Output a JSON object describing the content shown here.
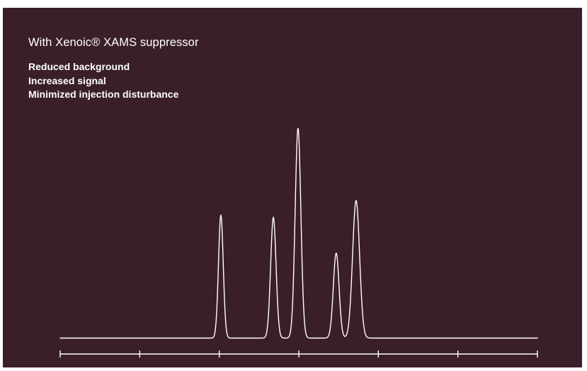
{
  "chart_data": {
    "type": "line",
    "title": "With Xenoic® XAMS suppressor",
    "annotations": [
      "Reduced background",
      "Increased signal",
      "Minimized injection disturbance"
    ],
    "xlabel": "",
    "ylabel": "",
    "xlim": [
      0,
      6
    ],
    "ylim": [
      0,
      1
    ],
    "x_tick_values": [
      0,
      1,
      2,
      3,
      4,
      5,
      6
    ],
    "x_tick_labels_shown": false,
    "grid": false,
    "legend": "none",
    "baseline": 0.005,
    "peaks": [
      {
        "x": 2.02,
        "height": 0.585,
        "width": 0.03
      },
      {
        "x": 2.68,
        "height": 0.575,
        "width": 0.034
      },
      {
        "x": 2.99,
        "height": 1.0,
        "width": 0.036
      },
      {
        "x": 3.47,
        "height": 0.405,
        "width": 0.036
      },
      {
        "x": 3.72,
        "height": 0.655,
        "width": 0.044
      }
    ],
    "colors": {
      "background": "#3a1f2b",
      "trace": "#ffffff",
      "axis": "#ffffff",
      "text": "#ffffff"
    }
  }
}
